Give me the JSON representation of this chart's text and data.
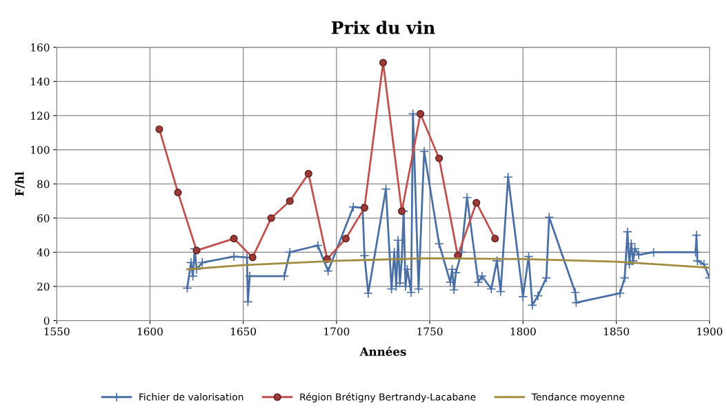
{
  "chart_data": {
    "type": "line",
    "title": "Prix du vin",
    "xlabel": "Années",
    "ylabel": "F/hl",
    "xlim": [
      1550,
      1900
    ],
    "xticks": [
      1550,
      1600,
      1650,
      1700,
      1750,
      1800,
      1850,
      1900
    ],
    "ylim": [
      0,
      160
    ],
    "yticks": [
      0,
      20,
      40,
      60,
      80,
      100,
      120,
      140,
      160
    ],
    "grid": true,
    "legend": "bottom",
    "series": [
      {
        "name": "Fichier de valorisation",
        "color": "#4a6fa5",
        "marker": "cross",
        "x": [
          1620,
          1622,
          1623,
          1624,
          1625,
          1628,
          1645,
          1652,
          1652.5,
          1653.5,
          1672,
          1675,
          1690,
          1695.5,
          1709,
          1714,
          1715,
          1717,
          1726.5,
          1729.5,
          1731,
          1732,
          1733,
          1734,
          1735,
          1736,
          1737,
          1738,
          1740,
          1741,
          1744,
          1747,
          1755,
          1761,
          1762,
          1763,
          1764,
          1767,
          1770,
          1776,
          1778,
          1783,
          1786,
          1788,
          1792,
          1800,
          1803,
          1805,
          1808,
          1812.5,
          1814,
          1828,
          1828.5,
          1852,
          1854.5,
          1856,
          1857,
          1858,
          1859,
          1860,
          1862,
          1870,
          1892.5,
          1893,
          1893.5,
          1897,
          1900
        ],
        "values": [
          19,
          34,
          26,
          42,
          30,
          34,
          37.5,
          37,
          11,
          26,
          26,
          40,
          44,
          29,
          66.5,
          66,
          38,
          16,
          77,
          18.5,
          40,
          20,
          47,
          22,
          36,
          64,
          20,
          30,
          16.5,
          121,
          18.5,
          99,
          45,
          22.5,
          30,
          18,
          28,
          40,
          72,
          22.5,
          26,
          18.5,
          35,
          17,
          84,
          14,
          37.5,
          9,
          14.5,
          25,
          60.5,
          16.5,
          10.5,
          16,
          25,
          52,
          33,
          45,
          35,
          42,
          38.5,
          40,
          40,
          50,
          35,
          33,
          25
        ]
      },
      {
        "name": "Région Brétigny Bertrandy-Lacabane",
        "color": "#c0504d",
        "marker": "circle",
        "x": [
          1605,
          1615,
          1625,
          1645,
          1655,
          1665,
          1675,
          1685,
          1695,
          1705,
          1715,
          1725,
          1735,
          1745,
          1755,
          1765,
          1775,
          1785
        ],
        "values": [
          112,
          75,
          41,
          48,
          37,
          60,
          70,
          86,
          36,
          48,
          66,
          151,
          64,
          121,
          95,
          38,
          69,
          48
        ]
      },
      {
        "name": "Tendance moyenne",
        "color": "#a08c40",
        "x": [
          1620,
          1650,
          1700,
          1750,
          1800,
          1850,
          1900
        ],
        "values": [
          30,
          32.5,
          35,
          36.5,
          36,
          34.5,
          31
        ]
      }
    ]
  }
}
